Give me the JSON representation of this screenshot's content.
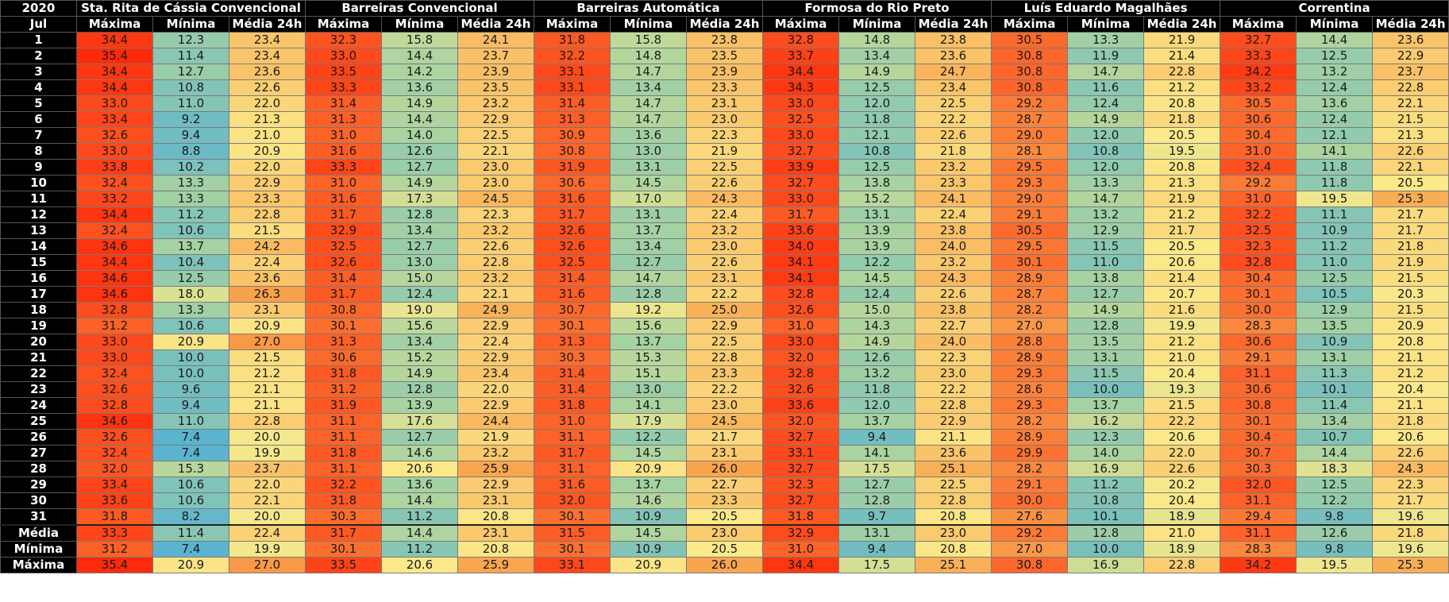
{
  "corner_year": "2020",
  "corner_month": "Jul",
  "stations": [
    "Sta. Rita de Cássia Convencional",
    "Barreiras Convencional",
    "Barreiras Automática",
    "Formosa do Rio Preto",
    "Luís Eduardo Magalhães",
    "Correntina"
  ],
  "subheaders": [
    "Máxima",
    "Mínima",
    "Média 24h"
  ],
  "rows": [
    {
      "label": "1",
      "values": [
        "34.4",
        "12.3",
        "23.4",
        "32.3",
        "15.8",
        "24.1",
        "31.8",
        "15.8",
        "23.8",
        "32.8",
        "14.8",
        "23.8",
        "30.5",
        "13.3",
        "21.9",
        "32.7",
        "14.4",
        "23.6"
      ]
    },
    {
      "label": "2",
      "values": [
        "35.4",
        "11.4",
        "23.4",
        "33.0",
        "14.4",
        "23.7",
        "32.2",
        "14.8",
        "23.5",
        "33.7",
        "13.4",
        "23.6",
        "30.8",
        "11.9",
        "21.4",
        "33.3",
        "12.5",
        "22.9"
      ]
    },
    {
      "label": "3",
      "values": [
        "34.4",
        "12.7",
        "23.6",
        "33.5",
        "14.2",
        "23.9",
        "33.1",
        "14.7",
        "23.9",
        "34.4",
        "14.9",
        "24.7",
        "30.8",
        "14.7",
        "22.8",
        "34.2",
        "13.2",
        "23.7"
      ]
    },
    {
      "label": "4",
      "values": [
        "34.4",
        "10.8",
        "22.6",
        "33.3",
        "13.6",
        "23.5",
        "33.1",
        "13.4",
        "23.3",
        "34.3",
        "12.5",
        "23.4",
        "30.8",
        "11.6",
        "21.2",
        "33.2",
        "12.4",
        "22.8"
      ]
    },
    {
      "label": "5",
      "values": [
        "33.0",
        "11.0",
        "22.0",
        "31.4",
        "14.9",
        "23.2",
        "31.4",
        "14.7",
        "23.1",
        "33.0",
        "12.0",
        "22.5",
        "29.2",
        "12.4",
        "20.8",
        "30.5",
        "13.6",
        "22.1"
      ]
    },
    {
      "label": "6",
      "values": [
        "33.4",
        "9.2",
        "21.3",
        "31.3",
        "14.4",
        "22.9",
        "31.3",
        "14.7",
        "23.0",
        "32.5",
        "11.8",
        "22.2",
        "28.7",
        "14.9",
        "21.8",
        "30.6",
        "12.4",
        "21.5"
      ]
    },
    {
      "label": "7",
      "values": [
        "32.6",
        "9.4",
        "21.0",
        "31.0",
        "14.0",
        "22.5",
        "30.9",
        "13.6",
        "22.3",
        "33.0",
        "12.1",
        "22.6",
        "29.0",
        "12.0",
        "20.5",
        "30.4",
        "12.1",
        "21.3"
      ]
    },
    {
      "label": "8",
      "values": [
        "33.0",
        "8.8",
        "20.9",
        "31.6",
        "12.6",
        "22.1",
        "30.8",
        "13.0",
        "21.9",
        "32.7",
        "10.8",
        "21.8",
        "28.1",
        "10.8",
        "19.5",
        "31.0",
        "14.1",
        "22.6"
      ]
    },
    {
      "label": "9",
      "values": [
        "33.8",
        "10.2",
        "22.0",
        "33.3",
        "12.7",
        "23.0",
        "31.9",
        "13.1",
        "22.5",
        "33.9",
        "12.5",
        "23.2",
        "29.5",
        "12.0",
        "20.8",
        "32.4",
        "11.8",
        "22.1"
      ]
    },
    {
      "label": "10",
      "values": [
        "32.4",
        "13.3",
        "22.9",
        "31.0",
        "14.9",
        "23.0",
        "30.6",
        "14.5",
        "22.6",
        "32.7",
        "13.8",
        "23.3",
        "29.3",
        "13.3",
        "21.3",
        "29.2",
        "11.8",
        "20.5"
      ]
    },
    {
      "label": "11",
      "values": [
        "33.2",
        "13.3",
        "23.3",
        "31.6",
        "17.3",
        "24.5",
        "31.6",
        "17.0",
        "24.3",
        "33.0",
        "15.2",
        "24.1",
        "29.0",
        "14.7",
        "21.9",
        "31.0",
        "19.5",
        "25.3"
      ]
    },
    {
      "label": "12",
      "values": [
        "34.4",
        "11.2",
        "22.8",
        "31.7",
        "12.8",
        "22.3",
        "31.7",
        "13.1",
        "22.4",
        "31.7",
        "13.1",
        "22.4",
        "29.1",
        "13.2",
        "21.2",
        "32.2",
        "11.1",
        "21.7"
      ]
    },
    {
      "label": "13",
      "values": [
        "32.4",
        "10.6",
        "21.5",
        "32.9",
        "13.4",
        "23.2",
        "32.6",
        "13.7",
        "23.2",
        "33.6",
        "13.9",
        "23.8",
        "30.5",
        "12.9",
        "21.7",
        "32.5",
        "10.9",
        "21.7"
      ]
    },
    {
      "label": "14",
      "values": [
        "34.6",
        "13.7",
        "24.2",
        "32.5",
        "12.7",
        "22.6",
        "32.6",
        "13.4",
        "23.0",
        "34.0",
        "13.9",
        "24.0",
        "29.5",
        "11.5",
        "20.5",
        "32.3",
        "11.2",
        "21.8"
      ]
    },
    {
      "label": "15",
      "values": [
        "34.4",
        "10.4",
        "22.4",
        "32.6",
        "13.0",
        "22.8",
        "32.5",
        "12.7",
        "22.6",
        "34.1",
        "12.2",
        "23.2",
        "30.1",
        "11.0",
        "20.6",
        "32.8",
        "11.0",
        "21.9"
      ]
    },
    {
      "label": "16",
      "values": [
        "34.6",
        "12.5",
        "23.6",
        "31.4",
        "15.0",
        "23.2",
        "31.4",
        "14.7",
        "23.1",
        "34.1",
        "14.5",
        "24.3",
        "28.9",
        "13.8",
        "21.4",
        "30.4",
        "12.5",
        "21.5"
      ]
    },
    {
      "label": "17",
      "values": [
        "34.6",
        "18.0",
        "26.3",
        "31.7",
        "12.4",
        "22.1",
        "31.6",
        "12.8",
        "22.2",
        "32.8",
        "12.4",
        "22.6",
        "28.7",
        "12.7",
        "20.7",
        "30.1",
        "10.5",
        "20.3"
      ]
    },
    {
      "label": "18",
      "values": [
        "32.8",
        "13.3",
        "23.1",
        "30.8",
        "19.0",
        "24.9",
        "30.7",
        "19.2",
        "25.0",
        "32.6",
        "15.0",
        "23.8",
        "28.2",
        "14.9",
        "21.6",
        "30.0",
        "12.9",
        "21.5"
      ]
    },
    {
      "label": "19",
      "values": [
        "31.2",
        "10.6",
        "20.9",
        "30.1",
        "15.6",
        "22.9",
        "30.1",
        "15.6",
        "22.9",
        "31.0",
        "14.3",
        "22.7",
        "27.0",
        "12.8",
        "19.9",
        "28.3",
        "13.5",
        "20.9"
      ]
    },
    {
      "label": "20",
      "values": [
        "33.0",
        "20.9",
        "27.0",
        "31.3",
        "13.4",
        "22.4",
        "31.3",
        "13.7",
        "22.5",
        "33.0",
        "14.9",
        "24.0",
        "28.8",
        "13.5",
        "21.2",
        "30.6",
        "10.9",
        "20.8"
      ]
    },
    {
      "label": "21",
      "values": [
        "33.0",
        "10.0",
        "21.5",
        "30.6",
        "15.2",
        "22.9",
        "30.3",
        "15.3",
        "22.8",
        "32.0",
        "12.6",
        "22.3",
        "28.9",
        "13.1",
        "21.0",
        "29.1",
        "13.1",
        "21.1"
      ]
    },
    {
      "label": "22",
      "values": [
        "32.4",
        "10.0",
        "21.2",
        "31.8",
        "14.9",
        "23.4",
        "31.4",
        "15.1",
        "23.3",
        "32.8",
        "13.2",
        "23.0",
        "29.3",
        "11.5",
        "20.4",
        "31.1",
        "11.3",
        "21.2"
      ]
    },
    {
      "label": "23",
      "values": [
        "32.6",
        "9.6",
        "21.1",
        "31.2",
        "12.8",
        "22.0",
        "31.4",
        "13.0",
        "22.2",
        "32.6",
        "11.8",
        "22.2",
        "28.6",
        "10.0",
        "19.3",
        "30.6",
        "10.1",
        "20.4"
      ]
    },
    {
      "label": "24",
      "values": [
        "32.8",
        "9.4",
        "21.1",
        "31.9",
        "13.9",
        "22.9",
        "31.8",
        "14.1",
        "23.0",
        "33.6",
        "12.0",
        "22.8",
        "29.3",
        "13.7",
        "21.5",
        "30.8",
        "11.4",
        "21.1"
      ]
    },
    {
      "label": "25",
      "values": [
        "34.6",
        "11.0",
        "22.8",
        "31.1",
        "17.6",
        "24.4",
        "31.0",
        "17.9",
        "24.5",
        "32.0",
        "13.7",
        "22.9",
        "28.2",
        "16.2",
        "22.2",
        "30.1",
        "13.4",
        "21.8"
      ]
    },
    {
      "label": "26",
      "values": [
        "32.6",
        "7.4",
        "20.0",
        "31.1",
        "12.7",
        "21.9",
        "31.1",
        "12.2",
        "21.7",
        "32.7",
        "9.4",
        "21.1",
        "28.9",
        "12.3",
        "20.6",
        "30.4",
        "10.7",
        "20.6"
      ]
    },
    {
      "label": "27",
      "values": [
        "32.4",
        "7.4",
        "19.9",
        "31.8",
        "14.6",
        "23.2",
        "31.7",
        "14.5",
        "23.1",
        "33.1",
        "14.1",
        "23.6",
        "29.9",
        "14.0",
        "22.0",
        "30.7",
        "14.4",
        "22.6"
      ]
    },
    {
      "label": "28",
      "values": [
        "32.0",
        "15.3",
        "23.7",
        "31.1",
        "20.6",
        "25.9",
        "31.1",
        "20.9",
        "26.0",
        "32.7",
        "17.5",
        "25.1",
        "28.2",
        "16.9",
        "22.6",
        "30.3",
        "18.3",
        "24.3"
      ]
    },
    {
      "label": "29",
      "values": [
        "33.4",
        "10.6",
        "22.0",
        "32.2",
        "13.6",
        "22.9",
        "31.6",
        "13.7",
        "22.7",
        "32.3",
        "12.7",
        "22.5",
        "29.1",
        "11.2",
        "20.2",
        "32.0",
        "12.5",
        "22.3"
      ]
    },
    {
      "label": "30",
      "values": [
        "33.6",
        "10.6",
        "22.1",
        "31.8",
        "14.4",
        "23.1",
        "32.0",
        "14.6",
        "23.3",
        "32.7",
        "12.8",
        "22.8",
        "30.0",
        "10.8",
        "20.4",
        "31.1",
        "12.2",
        "21.7"
      ]
    },
    {
      "label": "31",
      "values": [
        "31.8",
        "8.2",
        "20.0",
        "30.3",
        "11.2",
        "20.8",
        "30.1",
        "10.9",
        "20.5",
        "31.8",
        "9.7",
        "20.8",
        "27.6",
        "10.1",
        "18.9",
        "29.4",
        "9.8",
        "19.6"
      ]
    }
  ],
  "summary": [
    {
      "label": "Média",
      "values": [
        "33.3",
        "11.4",
        "22.4",
        "31.7",
        "14.4",
        "23.1",
        "31.5",
        "14.5",
        "23.0",
        "32.9",
        "13.1",
        "23.0",
        "29.2",
        "12.8",
        "21.0",
        "31.1",
        "12.6",
        "21.8"
      ]
    },
    {
      "label": "Mínima",
      "values": [
        "31.2",
        "7.4",
        "19.9",
        "30.1",
        "11.2",
        "20.8",
        "30.1",
        "10.9",
        "20.5",
        "31.0",
        "9.4",
        "20.8",
        "27.0",
        "10.0",
        "18.9",
        "28.3",
        "9.8",
        "19.6"
      ]
    },
    {
      "label": "Máxima",
      "values": [
        "35.4",
        "20.9",
        "27.0",
        "33.5",
        "20.6",
        "25.9",
        "33.1",
        "20.9",
        "26.0",
        "34.4",
        "17.5",
        "25.1",
        "30.8",
        "16.9",
        "22.8",
        "34.2",
        "19.5",
        "25.3"
      ]
    }
  ],
  "colors": {
    "header_bg": "#000000",
    "header_text": "#ffffff",
    "scale_cold": "#5ab4d0",
    "scale_cool": "#a9d3a0",
    "scale_mild": "#fbe98a",
    "scale_warm": "#f8a54e",
    "scale_hot": "#ff2a0a"
  }
}
